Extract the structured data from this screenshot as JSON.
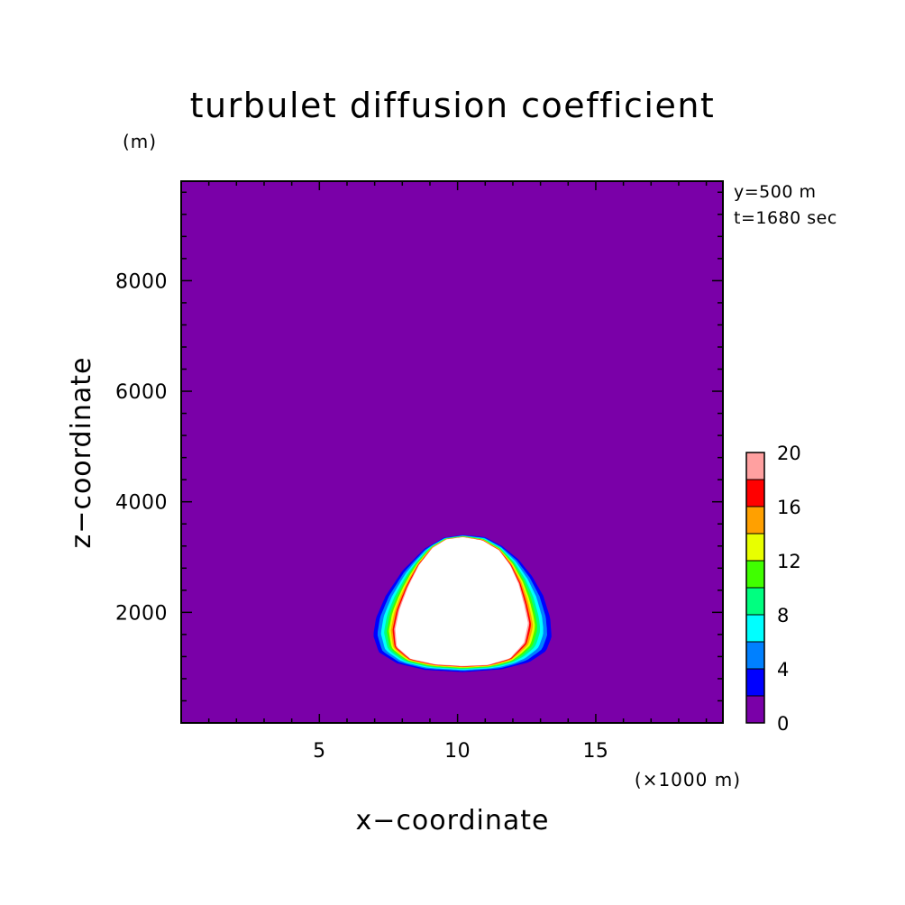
{
  "chart_data": {
    "type": "heatmap",
    "title": "turbulet diffusion coefficient",
    "xlabel": "x−coordinate",
    "ylabel": "z−coordinate",
    "x_unit": "(×1000 m)",
    "y_unit": "(m)",
    "annotations": [
      "y=500 m",
      "t=1680 sec"
    ],
    "xlim": [
      0,
      19.6
    ],
    "ylim": [
      0,
      9800
    ],
    "x_ticks": [
      5,
      10,
      15
    ],
    "x_tick_labels": [
      "5",
      "10",
      "15"
    ],
    "y_ticks": [
      2000,
      4000,
      6000,
      8000
    ],
    "y_tick_labels": [
      "2000",
      "4000",
      "6000",
      "8000"
    ],
    "x_minor_step": 1,
    "y_minor_step": 400,
    "background_value": 0,
    "background_color": "#7a00a8",
    "above_max_color": "#ffffff",
    "colorbar": {
      "min": 0,
      "max": 20,
      "step": 2,
      "tick_values": [
        0,
        4,
        8,
        12,
        16,
        20
      ],
      "tick_labels": [
        "0",
        "4",
        "8",
        "12",
        "16",
        "20"
      ],
      "colors": [
        "#7a00a8",
        "#0000ff",
        "#0080ff",
        "#00ffff",
        "#00ff80",
        "#40ff00",
        "#e8ff00",
        "#ffa000",
        "#ff0000",
        "#ffa0a0"
      ]
    },
    "plume": {
      "description_levels": "concentric contour bands from 2 to 20 around a central region exceeding 20",
      "center_x": 10.2,
      "outer_boundary": [
        [
          10.2,
          3400
        ],
        [
          11.0,
          3360
        ],
        [
          11.6,
          3200
        ],
        [
          12.2,
          2960
        ],
        [
          12.7,
          2650
        ],
        [
          13.1,
          2300
        ],
        [
          13.35,
          1900
        ],
        [
          13.4,
          1550
        ],
        [
          13.2,
          1300
        ],
        [
          12.6,
          1100
        ],
        [
          11.6,
          970
        ],
        [
          10.2,
          920
        ],
        [
          8.8,
          960
        ],
        [
          7.8,
          1080
        ],
        [
          7.15,
          1280
        ],
        [
          6.95,
          1580
        ],
        [
          7.05,
          1900
        ],
        [
          7.4,
          2300
        ],
        [
          8.0,
          2750
        ],
        [
          8.8,
          3150
        ],
        [
          9.5,
          3350
        ]
      ],
      "inner_boundary": [
        [
          10.2,
          3360
        ],
        [
          10.9,
          3300
        ],
        [
          11.5,
          3120
        ],
        [
          11.9,
          2850
        ],
        [
          12.2,
          2520
        ],
        [
          12.4,
          2150
        ],
        [
          12.55,
          1800
        ],
        [
          12.4,
          1450
        ],
        [
          11.9,
          1170
        ],
        [
          11.1,
          1050
        ],
        [
          10.2,
          1030
        ],
        [
          9.2,
          1060
        ],
        [
          8.3,
          1160
        ],
        [
          7.8,
          1380
        ],
        [
          7.75,
          1700
        ],
        [
          7.9,
          2050
        ],
        [
          8.2,
          2450
        ],
        [
          8.6,
          2850
        ],
        [
          9.1,
          3170
        ],
        [
          9.6,
          3320
        ]
      ]
    }
  }
}
